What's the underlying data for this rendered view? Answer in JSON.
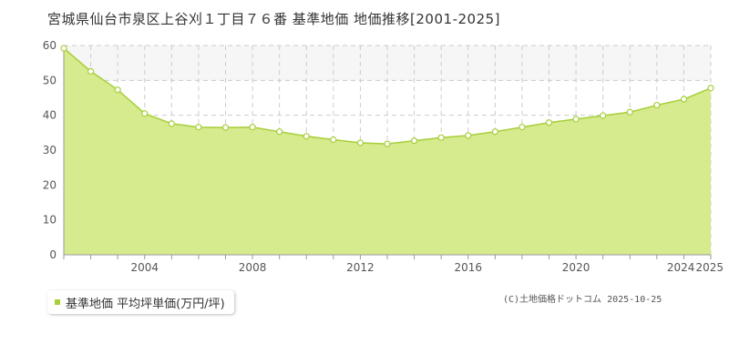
{
  "title": "宮城県仙台市泉区上谷刈１丁目７６番  基準地価  地価推移[2001-2025]",
  "legend": {
    "label": "基準地価  平均坪単価(万円/坪)"
  },
  "copyright": "(C)土地価格ドットコム 2025-10-25",
  "colors": {
    "fill": "#d6ea8e",
    "line": "#a6cf38",
    "marker_fill": "#ffffff",
    "grid": "#cccccc",
    "band": "#f6f6f6"
  },
  "chart_data": {
    "type": "area",
    "title": "",
    "xlabel": "",
    "ylabel": "",
    "xlim": [
      2001,
      2025
    ],
    "ylim": [
      0,
      60
    ],
    "yticks": [
      0,
      10,
      20,
      30,
      40,
      50,
      60
    ],
    "xtick_labels": [
      "2004",
      "2008",
      "2012",
      "2016",
      "2020",
      "2024",
      "2025"
    ],
    "grid": true,
    "legend_position": "bottom-left",
    "series": [
      {
        "name": "基準地価  平均坪単価(万円/坪)",
        "x": [
          2001,
          2002,
          2003,
          2004,
          2005,
          2006,
          2007,
          2008,
          2009,
          2010,
          2011,
          2012,
          2013,
          2014,
          2015,
          2016,
          2017,
          2018,
          2019,
          2020,
          2021,
          2022,
          2023,
          2024,
          2025
        ],
        "y": [
          59.2,
          52.6,
          47.3,
          40.5,
          37.6,
          36.6,
          36.5,
          36.6,
          35.3,
          34.0,
          33.0,
          32.1,
          31.8,
          32.7,
          33.6,
          34.2,
          35.3,
          36.6,
          37.9,
          38.9,
          39.9,
          40.9,
          42.9,
          44.6,
          47.8
        ]
      }
    ]
  }
}
